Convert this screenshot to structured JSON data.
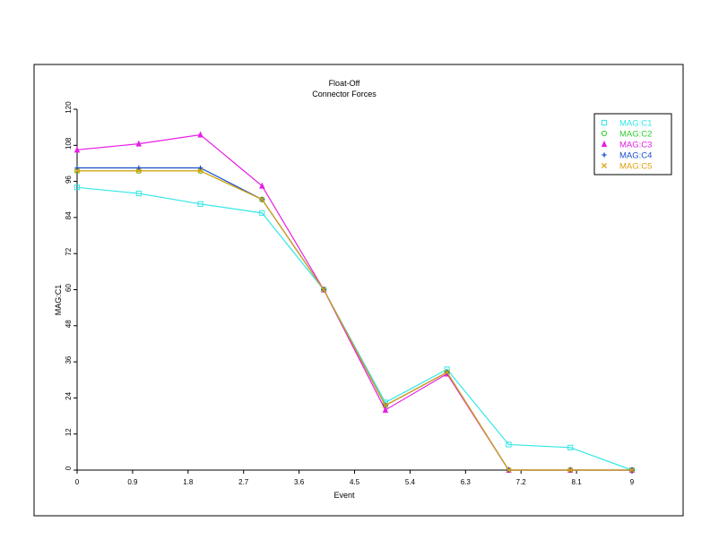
{
  "chart_data": {
    "type": "line",
    "title": "Float-Off",
    "subtitle": "Connector Forces",
    "xlabel": "Event",
    "ylabel": "MAG:C1",
    "xlim": [
      0,
      9
    ],
    "ylim": [
      0,
      120
    ],
    "x_ticks": [
      "0",
      "0.9",
      "1.8",
      "2.7",
      "3.6",
      "4.5",
      "5.4",
      "6.3",
      "7.2",
      "8.1",
      "9"
    ],
    "y_ticks": [
      "0",
      "12",
      "24",
      "36",
      "48",
      "60",
      "72",
      "84",
      "96",
      "108",
      "120"
    ],
    "grid": false,
    "legend_position": "top-right",
    "x": [
      0,
      1,
      2,
      3,
      4,
      5,
      6,
      7,
      8,
      9
    ],
    "series": [
      {
        "name": "MAG:C1",
        "color": "#33e6e6",
        "marker": "square-icon",
        "values": [
          94,
          92,
          88.5,
          85.5,
          60,
          22.5,
          33.5,
          8.5,
          7.5,
          0
        ]
      },
      {
        "name": "MAG:C2",
        "color": "#33cc33",
        "marker": "circle-icon",
        "values": [
          99.5,
          99.5,
          99.5,
          90,
          60,
          21.5,
          32.5,
          0,
          0,
          0
        ]
      },
      {
        "name": "MAG:C3",
        "color": "#e61ee6",
        "marker": "triangle-icon",
        "values": [
          106.5,
          108.5,
          111.5,
          94.5,
          60,
          20,
          32,
          0,
          0,
          0
        ]
      },
      {
        "name": "MAG:C4",
        "color": "#1a4fcc",
        "marker": "plus-icon",
        "values": [
          100.5,
          100.5,
          100.5,
          90,
          60,
          21.5,
          32.5,
          0,
          0,
          0
        ]
      },
      {
        "name": "MAG:C5",
        "color": "#e0a010",
        "marker": "x-icon",
        "values": [
          99.5,
          99.5,
          99.5,
          90,
          60,
          21.5,
          32.5,
          0,
          0,
          0
        ]
      }
    ]
  }
}
